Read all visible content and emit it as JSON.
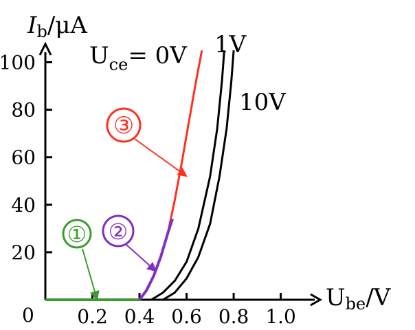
{
  "chart_data": {
    "type": "line",
    "x_label": {
      "symbol": "U",
      "subscript": "be",
      "unit": "/V"
    },
    "y_label": {
      "symbol": "I",
      "subscript": "b",
      "unit": "/μA"
    },
    "origin_label": "0",
    "xlim": [
      0,
      1.15
    ],
    "ylim": [
      0,
      110
    ],
    "x_ticks": [
      0.2,
      0.4,
      0.6,
      0.8,
      1.0
    ],
    "x_tick_labels": [
      "0.2",
      "0.4",
      "0.6",
      "0.8",
      "1.0"
    ],
    "y_ticks": [
      20,
      40,
      60,
      80,
      100
    ],
    "y_tick_labels": [
      "20",
      "40",
      "60",
      "80",
      "100"
    ],
    "series": [
      {
        "name": "Uce=0V",
        "label_parts": {
          "prefix": "U",
          "subscript": "ce",
          "suffix": "= 0V"
        },
        "color": "#ff3020",
        "x": [
          0.4,
          0.43,
          0.46,
          0.49,
          0.52,
          0.55,
          0.58,
          0.61,
          0.64,
          0.665
        ],
        "y": [
          0,
          4,
          10,
          18,
          28,
          42,
          58,
          75,
          92,
          105
        ]
      },
      {
        "name": "1V",
        "color": "#000000",
        "x": [
          0.45,
          0.5,
          0.55,
          0.6,
          0.65,
          0.7,
          0.73,
          0.75,
          0.76
        ],
        "y": [
          0,
          3,
          8,
          16,
          30,
          52,
          72,
          92,
          105
        ]
      },
      {
        "name": "10V",
        "color": "#000000",
        "x": [
          0.5,
          0.55,
          0.6,
          0.65,
          0.7,
          0.74,
          0.77,
          0.79,
          0.8
        ],
        "y": [
          0,
          3,
          9,
          18,
          32,
          52,
          72,
          92,
          105
        ]
      }
    ],
    "highlight_segments": [
      {
        "marker": "①",
        "color": "#3c9a30",
        "x": [
          0.0,
          0.4
        ],
        "y": [
          0,
          0
        ]
      },
      {
        "marker": "②",
        "color": "#8030c0",
        "x": [
          0.4,
          0.43,
          0.46,
          0.49,
          0.52,
          0.54
        ],
        "y": [
          0,
          4,
          10,
          18,
          28,
          34
        ]
      }
    ],
    "annotations": [
      {
        "text": "①",
        "color": "#3c9a30",
        "arrow_to": [
          0.22,
          0
        ]
      },
      {
        "text": "②",
        "color": "#8030c0",
        "arrow_to": [
          0.47,
          12
        ]
      },
      {
        "text": "③",
        "color": "#ff3020",
        "arrow_to": [
          0.6,
          52
        ]
      }
    ]
  }
}
